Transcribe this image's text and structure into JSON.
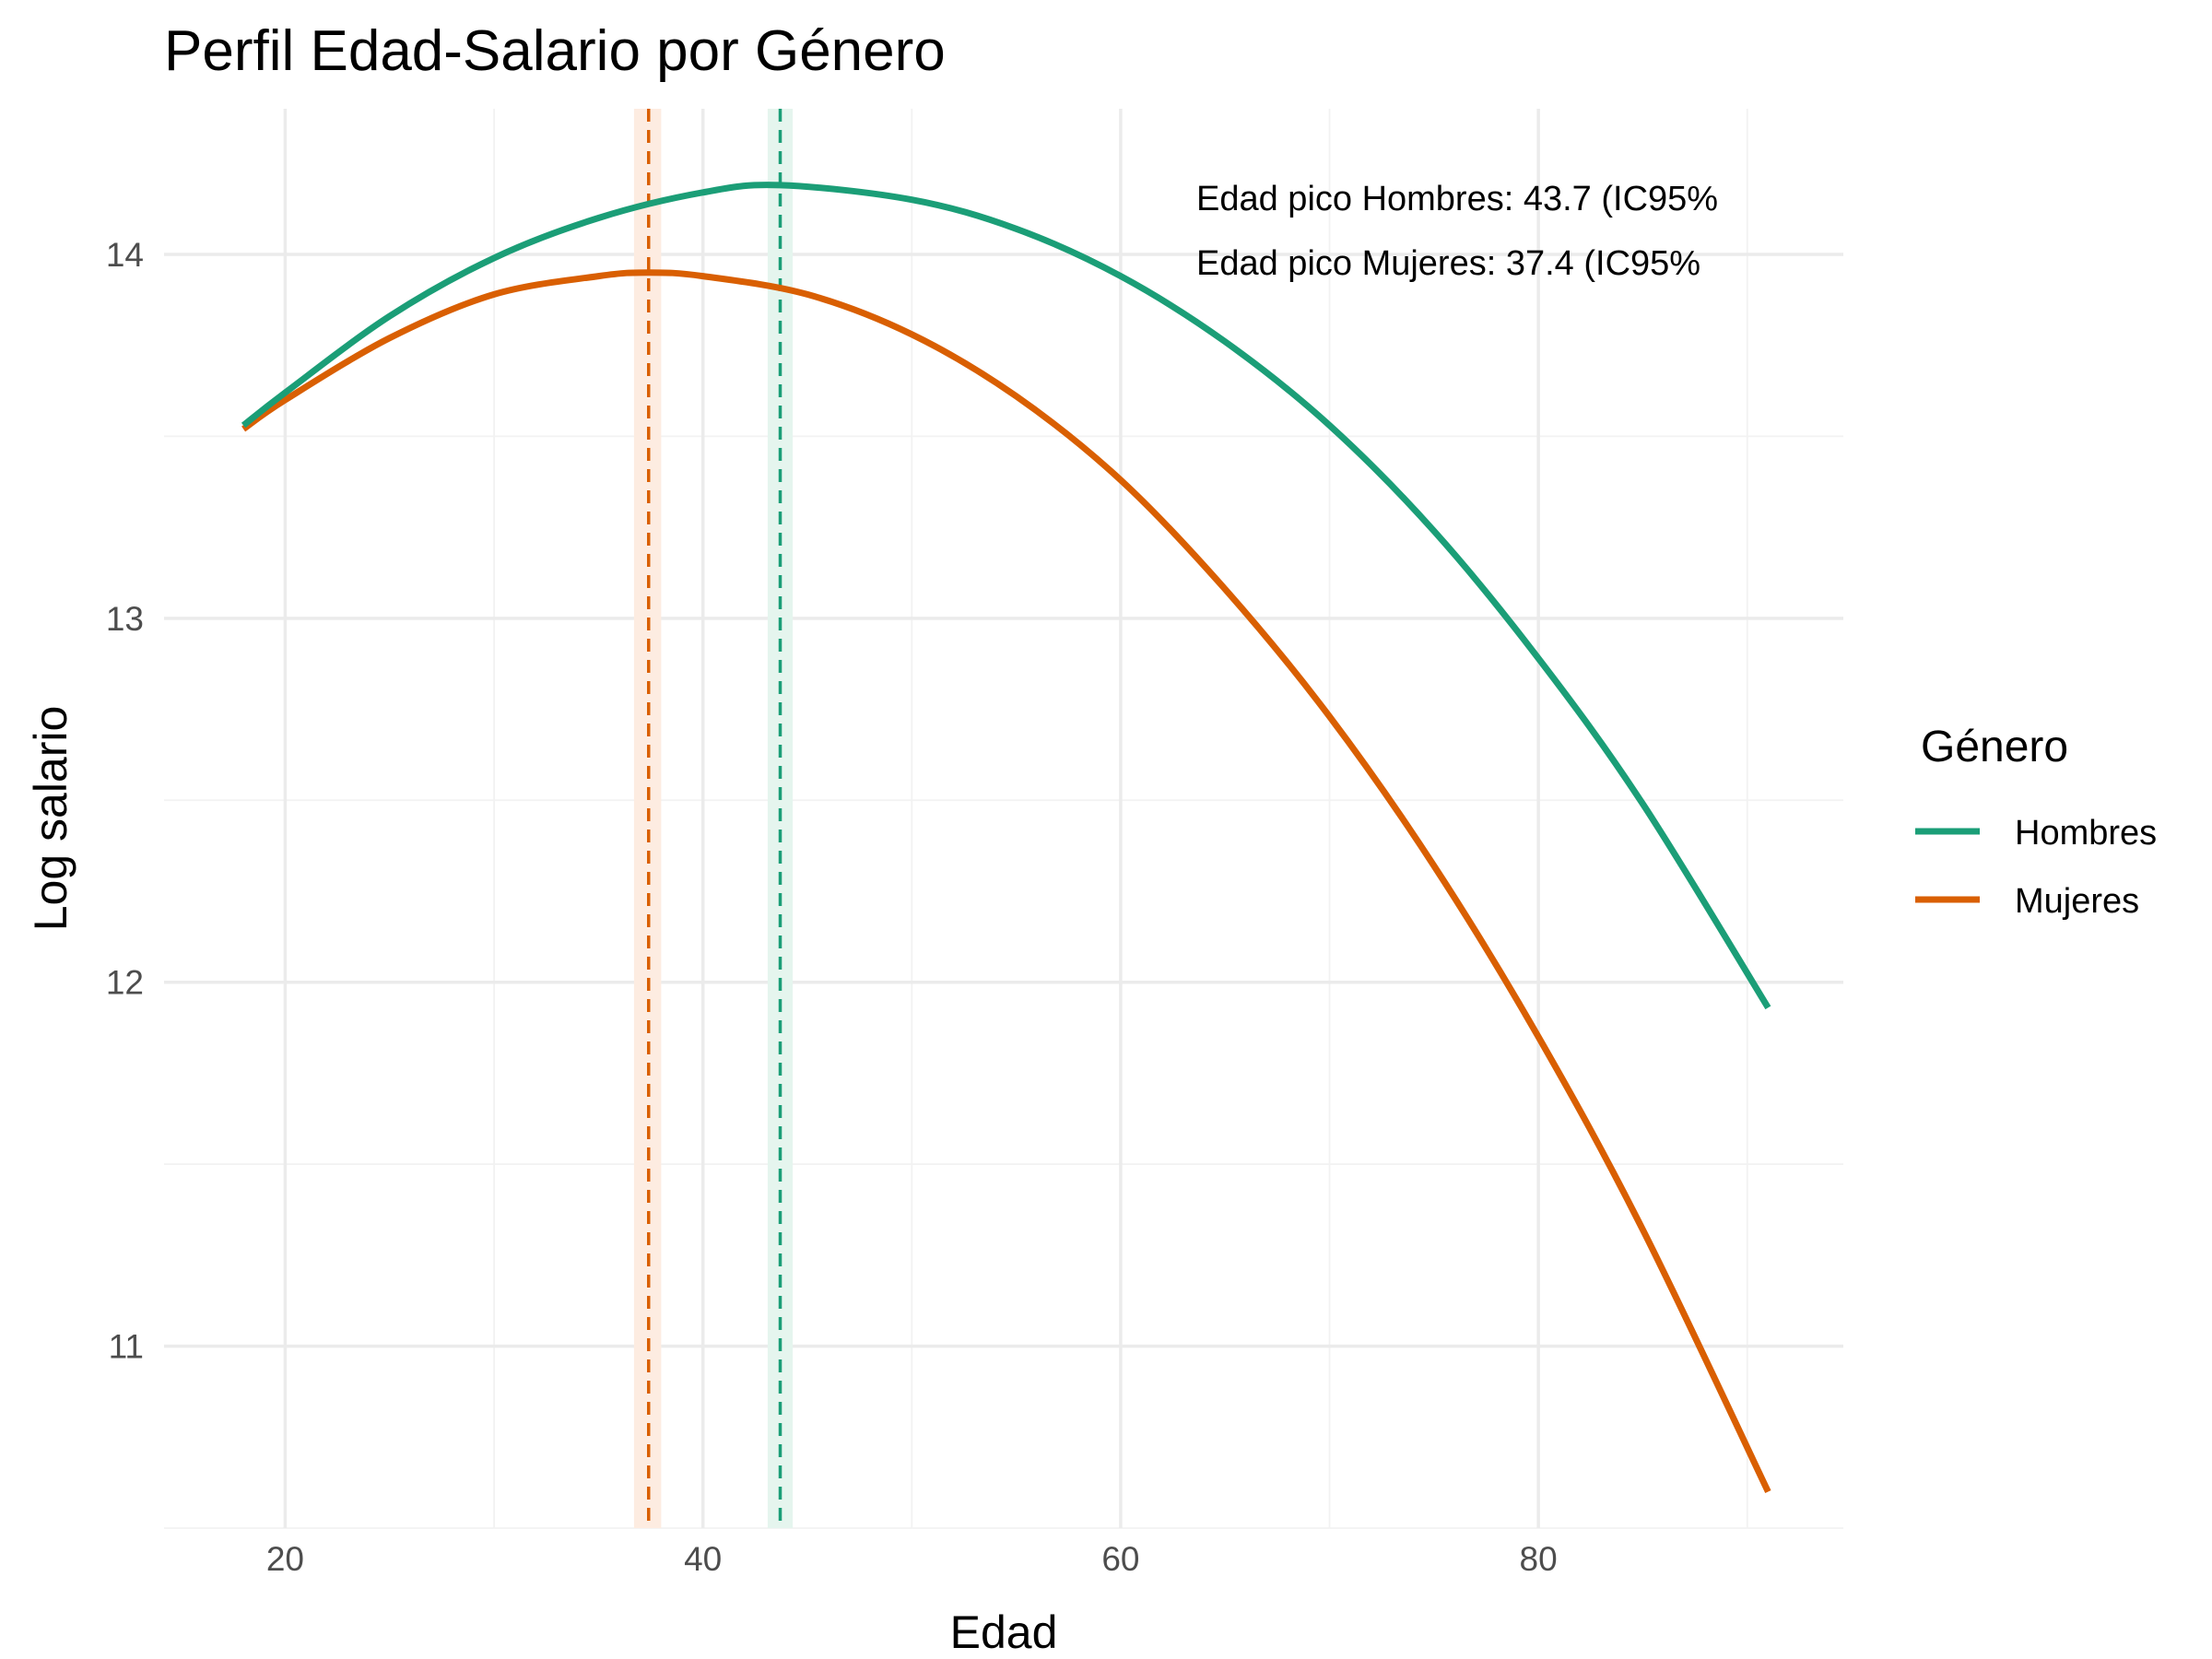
{
  "chart_data": {
    "type": "line",
    "title": "Perfil Edad-Salario por Género",
    "xlabel": "Edad",
    "ylabel": "Log salario",
    "xlim": [
      14.2,
      94.6
    ],
    "ylim": [
      10.5,
      14.4
    ],
    "x_ticks": [
      20,
      40,
      60,
      80
    ],
    "y_ticks": [
      11,
      12,
      13,
      14
    ],
    "grid": true,
    "legend": {
      "title": "Género",
      "position": "right"
    },
    "series": [
      {
        "name": "Hombres",
        "color": "#1b9e77",
        "peak_x": 43.7,
        "x": [
          18,
          20,
          25,
          30,
          35,
          40,
          43.7,
          50,
          55,
          60,
          65,
          70,
          75,
          80,
          85,
          91
        ],
        "y": [
          13.53,
          13.62,
          13.83,
          13.99,
          14.1,
          14.17,
          14.19,
          14.15,
          14.07,
          13.94,
          13.76,
          13.53,
          13.24,
          12.89,
          12.49,
          11.93
        ]
      },
      {
        "name": "Mujeres",
        "color": "#d95f02",
        "peak_x": 37.4,
        "x": [
          18,
          20,
          25,
          30,
          35,
          37.4,
          40,
          45,
          50,
          55,
          60,
          65,
          70,
          75,
          80,
          85,
          91
        ],
        "y": [
          13.52,
          13.6,
          13.77,
          13.89,
          13.94,
          13.95,
          13.94,
          13.89,
          13.78,
          13.61,
          13.38,
          13.08,
          12.73,
          12.32,
          11.85,
          11.32,
          10.6
        ]
      }
    ],
    "peak_bands": [
      {
        "series": "Hombres",
        "x_low": 43.1,
        "x_high": 44.3,
        "fill": "#e5f5ee",
        "line_color": "#1b9e77"
      },
      {
        "series": "Mujeres",
        "x_low": 36.7,
        "x_high": 38.0,
        "fill": "#fdece1",
        "line_color": "#d95f02"
      }
    ],
    "annotations": [
      "Edad pico Hombres: 43.7 (IC95%",
      "Edad pico Mujeres: 37.4 (IC95%"
    ]
  }
}
